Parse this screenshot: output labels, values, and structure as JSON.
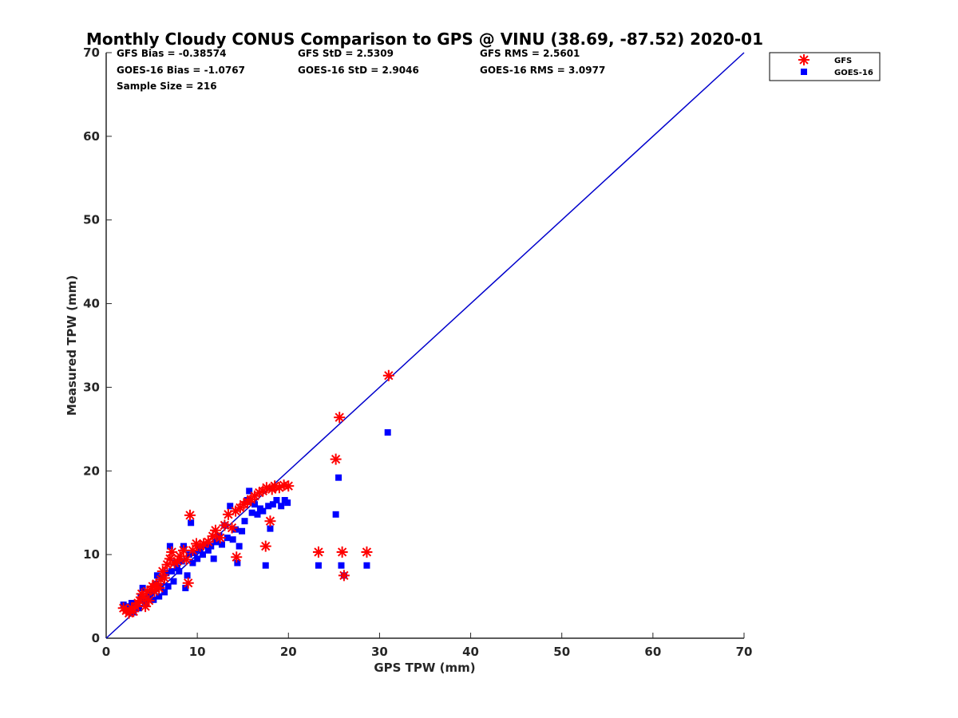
{
  "chart_data": {
    "type": "scatter",
    "title": "Monthly Cloudy CONUS Comparison to GPS @ VINU (38.69, -87.52) 2020-01",
    "xlabel": "GPS TPW (mm)",
    "ylabel": "Measured TPW (mm)",
    "xlim": [
      0,
      70
    ],
    "ylim": [
      0,
      70
    ],
    "xticks": [
      0,
      10,
      20,
      30,
      40,
      50,
      60,
      70
    ],
    "yticks": [
      0,
      10,
      20,
      30,
      40,
      50,
      60,
      70
    ],
    "grid": false,
    "legend_position": "top-right",
    "stats": [
      [
        "GFS Bias = -0.38574",
        "GFS StD = 2.5309",
        "GFS RMS = 2.5601"
      ],
      [
        "GOES-16 Bias = -1.0767",
        "GOES-16 StD = 2.9046",
        "GOES-16 RMS = 3.0977"
      ],
      [
        "Sample Size = 216",
        "",
        ""
      ]
    ],
    "reference_line": {
      "name": "1:1",
      "color": "#0000cc",
      "x": [
        0,
        70
      ],
      "y": [
        0,
        70
      ]
    },
    "series": [
      {
        "name": "GFS",
        "marker": "asterisk",
        "color": "#ff0000",
        "points": [
          [
            1.9,
            3.6
          ],
          [
            2.2,
            3.3
          ],
          [
            2.5,
            3.0
          ],
          [
            2.8,
            3.6
          ],
          [
            3.0,
            3.2
          ],
          [
            3.2,
            3.8
          ],
          [
            3.5,
            4.2
          ],
          [
            3.7,
            4.5
          ],
          [
            3.9,
            5.3
          ],
          [
            4.1,
            4.9
          ],
          [
            4.3,
            3.8
          ],
          [
            4.5,
            5.6
          ],
          [
            4.7,
            4.5
          ],
          [
            4.9,
            5.8
          ],
          [
            5.1,
            6.2
          ],
          [
            5.3,
            5.6
          ],
          [
            5.5,
            6.5
          ],
          [
            5.8,
            6.0
          ],
          [
            6.0,
            7.0
          ],
          [
            6.2,
            8.0
          ],
          [
            6.4,
            7.2
          ],
          [
            6.7,
            8.8
          ],
          [
            7.0,
            9.5
          ],
          [
            7.2,
            10.3
          ],
          [
            7.5,
            9.0
          ],
          [
            7.8,
            9.2
          ],
          [
            8.1,
            9.8
          ],
          [
            8.5,
            10.5
          ],
          [
            8.8,
            9.4
          ],
          [
            9.0,
            6.6
          ],
          [
            9.2,
            14.7
          ],
          [
            9.5,
            10.5
          ],
          [
            9.9,
            11.3
          ],
          [
            10.3,
            11.0
          ],
          [
            10.7,
            11.3
          ],
          [
            11.2,
            11.5
          ],
          [
            11.7,
            12.2
          ],
          [
            12.0,
            12.9
          ],
          [
            12.5,
            12.0
          ],
          [
            13.0,
            13.5
          ],
          [
            13.4,
            14.8
          ],
          [
            13.8,
            13.2
          ],
          [
            14.2,
            15.2
          ],
          [
            14.3,
            9.7
          ],
          [
            14.7,
            15.6
          ],
          [
            15.1,
            16.0
          ],
          [
            15.5,
            16.3
          ],
          [
            15.9,
            16.6
          ],
          [
            16.3,
            17.0
          ],
          [
            16.8,
            17.4
          ],
          [
            17.2,
            17.6
          ],
          [
            17.5,
            11.0
          ],
          [
            17.6,
            18.0
          ],
          [
            18.0,
            14.0
          ],
          [
            18.2,
            17.8
          ],
          [
            18.5,
            18.2
          ],
          [
            19.0,
            18.0
          ],
          [
            19.5,
            18.3
          ],
          [
            20.0,
            18.2
          ],
          [
            23.3,
            10.3
          ],
          [
            25.2,
            21.4
          ],
          [
            25.6,
            26.4
          ],
          [
            25.9,
            10.3
          ],
          [
            26.1,
            7.5
          ],
          [
            28.6,
            10.3
          ],
          [
            31.0,
            31.4
          ]
        ]
      },
      {
        "name": "GOES-16",
        "marker": "square",
        "color": "#0000ff",
        "points": [
          [
            1.9,
            4.0
          ],
          [
            2.2,
            3.4
          ],
          [
            2.5,
            3.8
          ],
          [
            2.8,
            4.2
          ],
          [
            3.0,
            3.1
          ],
          [
            3.2,
            3.9
          ],
          [
            3.4,
            4.0
          ],
          [
            3.6,
            3.6
          ],
          [
            3.8,
            5.0
          ],
          [
            4.0,
            6.0
          ],
          [
            4.2,
            4.5
          ],
          [
            4.4,
            4.2
          ],
          [
            4.6,
            5.2
          ],
          [
            4.8,
            4.8
          ],
          [
            5.0,
            5.5
          ],
          [
            5.2,
            4.6
          ],
          [
            5.4,
            6.5
          ],
          [
            5.6,
            7.5
          ],
          [
            5.8,
            5.0
          ],
          [
            6.0,
            6.2
          ],
          [
            6.2,
            7.3
          ],
          [
            6.4,
            5.5
          ],
          [
            6.6,
            7.8
          ],
          [
            6.8,
            6.2
          ],
          [
            7.0,
            11.0
          ],
          [
            7.2,
            8.0
          ],
          [
            7.4,
            6.8
          ],
          [
            7.6,
            9.0
          ],
          [
            7.8,
            8.4
          ],
          [
            8.0,
            8.0
          ],
          [
            8.3,
            9.2
          ],
          [
            8.5,
            11.0
          ],
          [
            8.7,
            6.0
          ],
          [
            8.9,
            7.5
          ],
          [
            9.1,
            10.0
          ],
          [
            9.3,
            13.8
          ],
          [
            9.5,
            9.0
          ],
          [
            9.7,
            10.2
          ],
          [
            10.0,
            9.5
          ],
          [
            10.3,
            10.6
          ],
          [
            10.6,
            10.0
          ],
          [
            10.9,
            11.2
          ],
          [
            11.2,
            10.5
          ],
          [
            11.5,
            11.0
          ],
          [
            11.8,
            9.5
          ],
          [
            12.1,
            11.5
          ],
          [
            12.4,
            12.2
          ],
          [
            12.7,
            11.2
          ],
          [
            13.0,
            13.5
          ],
          [
            13.3,
            12.0
          ],
          [
            13.6,
            15.8
          ],
          [
            13.9,
            11.8
          ],
          [
            14.2,
            13.0
          ],
          [
            14.4,
            9.0
          ],
          [
            14.6,
            11.0
          ],
          [
            14.9,
            12.8
          ],
          [
            15.2,
            14.0
          ],
          [
            15.5,
            16.5
          ],
          [
            15.7,
            17.6
          ],
          [
            16.0,
            15.0
          ],
          [
            16.3,
            16.0
          ],
          [
            16.6,
            14.8
          ],
          [
            16.9,
            15.5
          ],
          [
            17.2,
            15.2
          ],
          [
            17.5,
            8.7
          ],
          [
            17.8,
            15.8
          ],
          [
            18.0,
            13.1
          ],
          [
            18.3,
            16.0
          ],
          [
            18.7,
            16.5
          ],
          [
            19.2,
            15.8
          ],
          [
            19.6,
            16.5
          ],
          [
            19.9,
            16.2
          ],
          [
            23.3,
            8.7
          ],
          [
            25.2,
            14.8
          ],
          [
            25.5,
            19.2
          ],
          [
            25.8,
            8.7
          ],
          [
            26.1,
            7.5
          ],
          [
            28.6,
            8.7
          ],
          [
            30.9,
            24.6
          ]
        ]
      }
    ]
  }
}
